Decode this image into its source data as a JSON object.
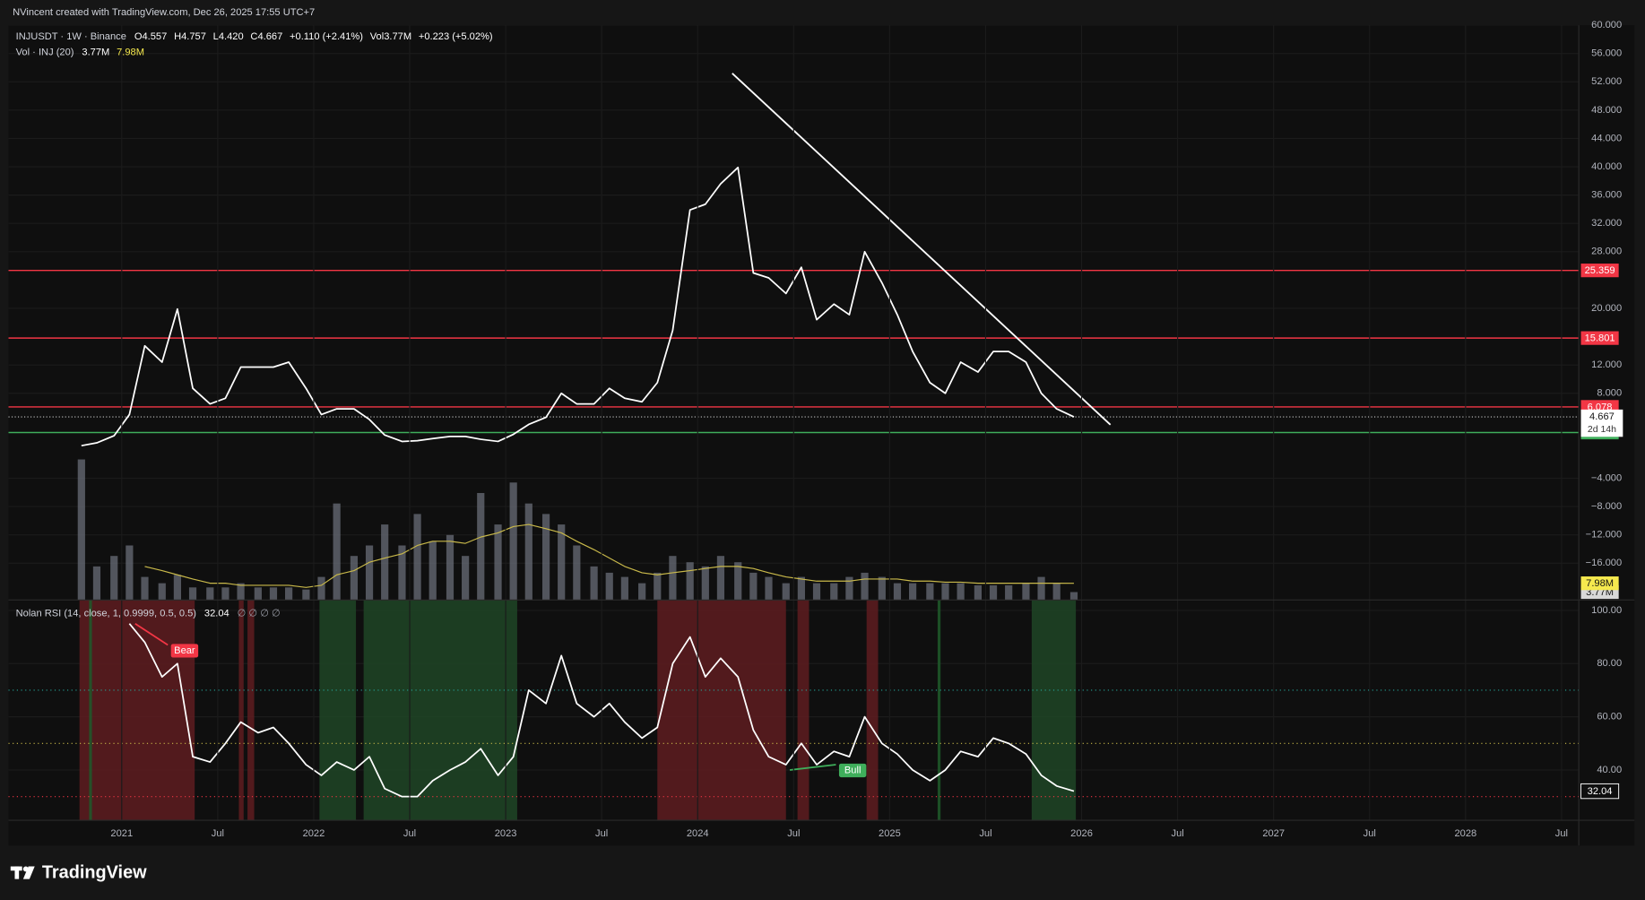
{
  "header": {
    "text": "NVincent created with TradingView.com, Dec 26, 2025 17:55 UTC+7"
  },
  "legend": {
    "symbol": "INJUSDT · 1W · Binance",
    "ohlc": [
      "O4.557",
      "H4.757",
      "L4.420",
      "C4.667",
      "+0.110 (+2.41%)",
      "Vol3.77M",
      "+0.223 (+5.02%)"
    ],
    "volume_label": "Vol · INJ (20)",
    "rsi_label": "Nolan RSI (14, close, 1, 0.9999, 0.5, 0.5)",
    "rsi_extra": "∅ ∅ ∅ ∅"
  },
  "footer": {
    "brand": "TradingView"
  },
  "chart_data": [
    {
      "type": "line",
      "x": [
        2020.79,
        2020.87,
        2020.96,
        2021.04,
        2021.12,
        2021.21,
        2021.29,
        2021.37,
        2021.46,
        2021.54,
        2021.62,
        2021.71,
        2021.79,
        2021.87,
        2021.96,
        2022.04,
        2022.12,
        2022.21,
        2022.29,
        2022.37,
        2022.46,
        2022.54,
        2022.62,
        2022.71,
        2022.79,
        2022.87,
        2022.96,
        2023.04,
        2023.12,
        2023.21,
        2023.29,
        2023.37,
        2023.46,
        2023.54,
        2023.62,
        2023.71,
        2023.79,
        2023.87,
        2023.96,
        2024.04,
        2024.12,
        2024.21,
        2024.29,
        2024.37,
        2024.46,
        2024.54,
        2024.62,
        2024.71,
        2024.79,
        2024.87,
        2024.96,
        2025.04,
        2025.12,
        2025.21,
        2025.29,
        2025.37,
        2025.46,
        2025.54,
        2025.62,
        2025.71,
        2025.79,
        2025.87,
        2025.96
      ],
      "series": [
        {
          "type": "line",
          "color": "#ffffff",
          "values": [
            0.6,
            1.0,
            2.0,
            5,
            14.7,
            12.4,
            19.9,
            8.7,
            6.5,
            7.3,
            11.7,
            11.7,
            11.7,
            12.4,
            8.7,
            5.0,
            5.8,
            5.8,
            4.3,
            2.1,
            1.2,
            1.3,
            1.6,
            1.9,
            1.9,
            1.5,
            1.2,
            2.2,
            3.6,
            4.6,
            8.0,
            6.5,
            6.5,
            8.7,
            7.3,
            6.8,
            9.5,
            16.9,
            33.9,
            34.7,
            37.6,
            39.9,
            25,
            24.3,
            22.1,
            25.8,
            18.4,
            20.6,
            19.1,
            28,
            23.6,
            19.1,
            13.9,
            9.5,
            8.0,
            12.4,
            11.0,
            13.9,
            13.9,
            12.4,
            8.0,
            5.8,
            4.667
          ]
        },
        {
          "type": "bar",
          "axis": "y2",
          "color": "#6a6d78",
          "values": [
            67,
            16,
            21,
            26,
            11,
            8,
            12,
            6,
            6,
            6,
            8,
            6,
            6,
            6,
            5,
            11,
            46,
            21,
            26,
            36,
            26,
            41,
            28,
            31,
            21,
            51,
            36,
            56,
            46,
            41,
            36,
            26,
            16,
            13,
            11,
            8,
            13,
            21,
            18,
            16,
            21,
            18,
            13,
            11,
            8,
            11,
            8,
            8,
            11,
            13,
            11,
            8,
            8,
            8,
            8,
            8,
            7,
            7,
            7,
            8,
            11,
            8,
            3.77
          ]
        },
        {
          "type": "line",
          "axis": "y2",
          "color": "#c9b94a",
          "values": [
            null,
            null,
            null,
            null,
            16,
            14,
            12,
            10,
            8,
            8,
            7,
            7,
            7,
            7,
            6,
            7,
            12,
            14,
            18,
            20,
            22,
            26,
            28,
            28,
            27,
            30,
            32,
            35,
            36,
            34,
            32,
            28,
            24,
            20,
            16,
            13,
            12,
            13,
            14,
            15,
            16,
            16,
            15,
            13,
            11,
            10,
            9,
            9,
            9,
            10,
            10,
            10,
            9,
            9,
            8.5,
            8.5,
            8,
            8,
            8,
            8,
            8,
            8,
            7.98
          ]
        }
      ],
      "xlim": [
        2020.41,
        2028.59
      ],
      "ylim": [
        -21.2,
        60
      ],
      "yticks": [
        {
          "value": 60,
          "label": "60.000"
        },
        {
          "value": 56,
          "label": "56.000"
        },
        {
          "value": 52,
          "label": "52.000"
        },
        {
          "value": 48,
          "label": "48.000"
        },
        {
          "value": 44,
          "label": "44.000"
        },
        {
          "value": 40,
          "label": "40.000"
        },
        {
          "value": 36,
          "label": "36.000"
        },
        {
          "value": 32,
          "label": "32.000"
        },
        {
          "value": 28,
          "label": "28.000"
        },
        {
          "value": 20,
          "label": "20.000"
        },
        {
          "value": 12,
          "label": "12.000"
        },
        {
          "value": 8,
          "label": "8.000"
        },
        {
          "value": -4,
          "label": "−4.000"
        },
        {
          "value": -8,
          "label": "−8.000"
        },
        {
          "value": -12,
          "label": "−12.000"
        },
        {
          "value": -16,
          "label": "−16.000"
        }
      ],
      "y2lim": [
        0,
        71
      ],
      "y2badges": [
        {
          "value": 7.98,
          "label": "7.98M",
          "color": "#f5e94e"
        },
        {
          "value": 3.77,
          "label": "3.77M",
          "color": "#d8d8d8"
        }
      ],
      "levels": [
        {
          "value": 25.359,
          "color": "#f23645"
        },
        {
          "value": 15.801,
          "color": "#f23645"
        },
        {
          "value": 6.078,
          "color": "#f23645"
        },
        {
          "value": 2.459,
          "color": "#3fae5b"
        }
      ],
      "last_price": {
        "value": 4.667,
        "countdown": "2d 14h",
        "color": "#c8c8c8"
      },
      "trendline": {
        "x": [
          2024.18,
          2026.15
        ],
        "values": [
          53.2,
          3.56
        ],
        "color": "#ffffff"
      },
      "grid": true
    },
    {
      "type": "line",
      "x": [
        2020.79,
        2020.87,
        2020.96,
        2021.04,
        2021.12,
        2021.21,
        2021.29,
        2021.37,
        2021.46,
        2021.54,
        2021.62,
        2021.71,
        2021.79,
        2021.87,
        2021.96,
        2022.04,
        2022.12,
        2022.21,
        2022.29,
        2022.37,
        2022.46,
        2022.54,
        2022.62,
        2022.71,
        2022.79,
        2022.87,
        2022.96,
        2023.04,
        2023.12,
        2023.21,
        2023.29,
        2023.37,
        2023.46,
        2023.54,
        2023.62,
        2023.71,
        2023.79,
        2023.87,
        2023.96,
        2024.04,
        2024.12,
        2024.21,
        2024.29,
        2024.37,
        2024.46,
        2024.54,
        2024.62,
        2024.71,
        2024.79,
        2024.87,
        2024.96,
        2025.04,
        2025.12,
        2025.21,
        2025.29,
        2025.37,
        2025.46,
        2025.54,
        2025.62,
        2025.71,
        2025.79,
        2025.87,
        2025.96
      ],
      "color": "#ffffff",
      "values": [
        null,
        null,
        null,
        95,
        88,
        75,
        80,
        45,
        43,
        50,
        58,
        54,
        56,
        50,
        42,
        38,
        43,
        40,
        45,
        33,
        30,
        30,
        36,
        40,
        43,
        48,
        38,
        45,
        70,
        65,
        83,
        65,
        60,
        65,
        58,
        52,
        56,
        80,
        90,
        75,
        82,
        75,
        55,
        45,
        42,
        50,
        42,
        47,
        45,
        60,
        50,
        46,
        40,
        36,
        40,
        47,
        45,
        52,
        50,
        46,
        38,
        34,
        32.04
      ],
      "xlim": [
        2020.41,
        2028.59
      ],
      "ylim": [
        21.1,
        103.9
      ],
      "yticks": [
        {
          "value": 100,
          "label": "100.00"
        },
        {
          "value": 80,
          "label": "80.00"
        },
        {
          "value": 60,
          "label": "60.00"
        },
        {
          "value": 40,
          "label": "40.00"
        }
      ],
      "xticks": [
        2021,
        {
          "value": 2021.5,
          "label": "Jul"
        },
        2022,
        {
          "value": 2022.5,
          "label": "Jul"
        },
        2023,
        {
          "value": 2023.5,
          "label": "Jul"
        },
        2024,
        {
          "value": 2024.5,
          "label": "Jul"
        },
        2025,
        {
          "value": 2025.5,
          "label": "Jul"
        },
        2026,
        {
          "value": 2026.5,
          "label": "Jul"
        },
        2027,
        {
          "value": 2027.5,
          "label": "Jul"
        },
        2028,
        {
          "value": 2028.5,
          "label": "Jul"
        }
      ],
      "hlines": [
        {
          "value": 70,
          "color": "#26a69a"
        },
        {
          "value": 50,
          "color": "#c9b94a"
        },
        {
          "value": 30,
          "color": "#f23645"
        }
      ],
      "zones": [
        {
          "start": 2020.78,
          "end": 2021.38,
          "color": "#5e1c20"
        },
        {
          "start": 2020.83,
          "end": 2020.845,
          "color": "#1f5a2a"
        },
        {
          "start": 2021.61,
          "end": 2021.635,
          "color": "#5e1c20"
        },
        {
          "start": 2021.655,
          "end": 2021.69,
          "color": "#5e1c20"
        },
        {
          "start": 2022.03,
          "end": 2022.22,
          "color": "#1f4526"
        },
        {
          "start": 2022.26,
          "end": 2023.06,
          "color": "#1f4526"
        },
        {
          "start": 2023.79,
          "end": 2024.46,
          "color": "#5e1c20"
        },
        {
          "start": 2024.52,
          "end": 2024.58,
          "color": "#5e1c20"
        },
        {
          "start": 2024.88,
          "end": 2024.94,
          "color": "#5e1c20"
        },
        {
          "start": 2025.25,
          "end": 2025.265,
          "color": "#1f5a2a"
        },
        {
          "start": 2025.74,
          "end": 2025.97,
          "color": "#1f4526"
        }
      ],
      "annotations": [
        {
          "label": "Bear",
          "color": "#f23645",
          "x": [
            2021.07,
            2021.24
          ],
          "values": [
            95,
            87
          ]
        },
        {
          "label": "Bull",
          "color": "#3fae5b",
          "x": [
            2024.48,
            2024.72
          ],
          "values": [
            40,
            42
          ]
        }
      ],
      "grid": true
    }
  ]
}
